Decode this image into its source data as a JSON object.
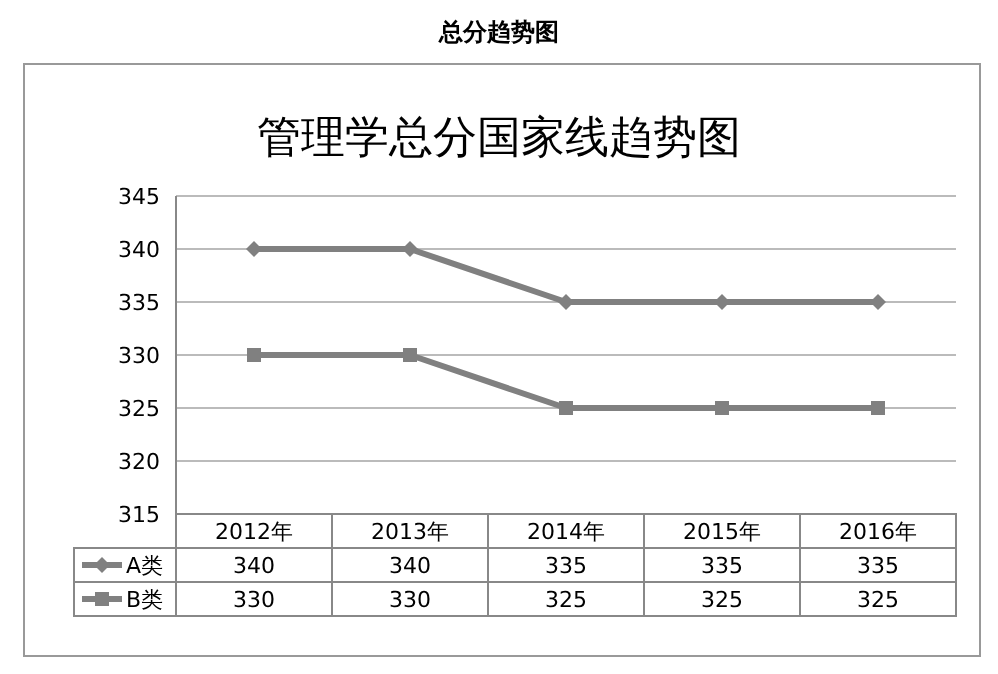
{
  "chart_data": {
    "type": "line",
    "title": "总分趋势图",
    "subtitle": "管理学总分国家线趋势图",
    "categories": [
      "2012年",
      "2013年",
      "2014年",
      "2015年",
      "2016年"
    ],
    "series": [
      {
        "name": "A类",
        "color": "#808080",
        "marker": "diamond",
        "values": [
          340,
          340,
          335,
          335,
          335
        ]
      },
      {
        "name": "B类",
        "color": "#808080",
        "marker": "square",
        "values": [
          330,
          330,
          325,
          325,
          325
        ]
      }
    ],
    "ylim": [
      315,
      345
    ],
    "yticks": [
      315,
      320,
      325,
      330,
      335,
      340,
      345
    ],
    "grid": "y",
    "data_labels": true,
    "legend": "bottom"
  }
}
